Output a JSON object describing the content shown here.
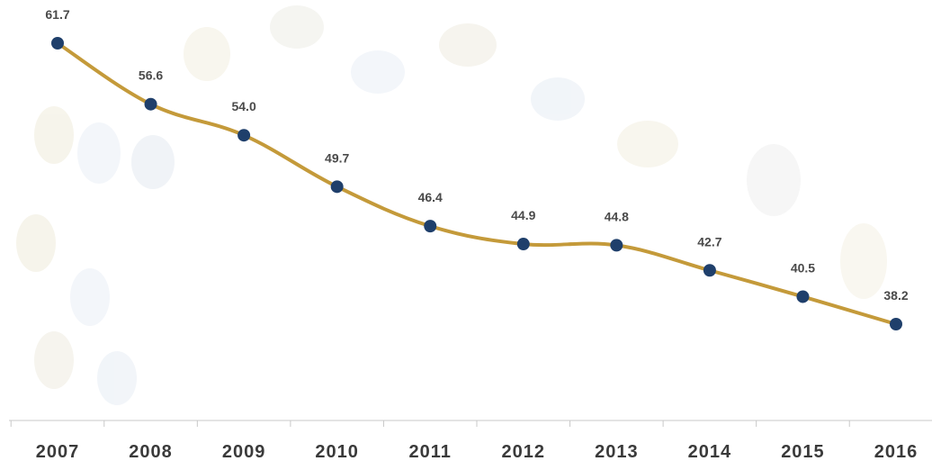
{
  "chart_data": {
    "type": "line",
    "categories": [
      "2007",
      "2008",
      "2009",
      "2010",
      "2011",
      "2012",
      "2013",
      "2014",
      "2015",
      "2016"
    ],
    "values": [
      61.7,
      56.6,
      54.0,
      49.7,
      46.4,
      44.9,
      44.8,
      42.7,
      40.5,
      38.2
    ],
    "value_labels": [
      "61.7",
      "56.6",
      "54.0",
      "49.7",
      "46.4",
      "44.9",
      "44.8",
      "42.7",
      "40.5",
      "38.2"
    ],
    "color": "#c49a3a",
    "marker_color": "#1f3f6b"
  }
}
